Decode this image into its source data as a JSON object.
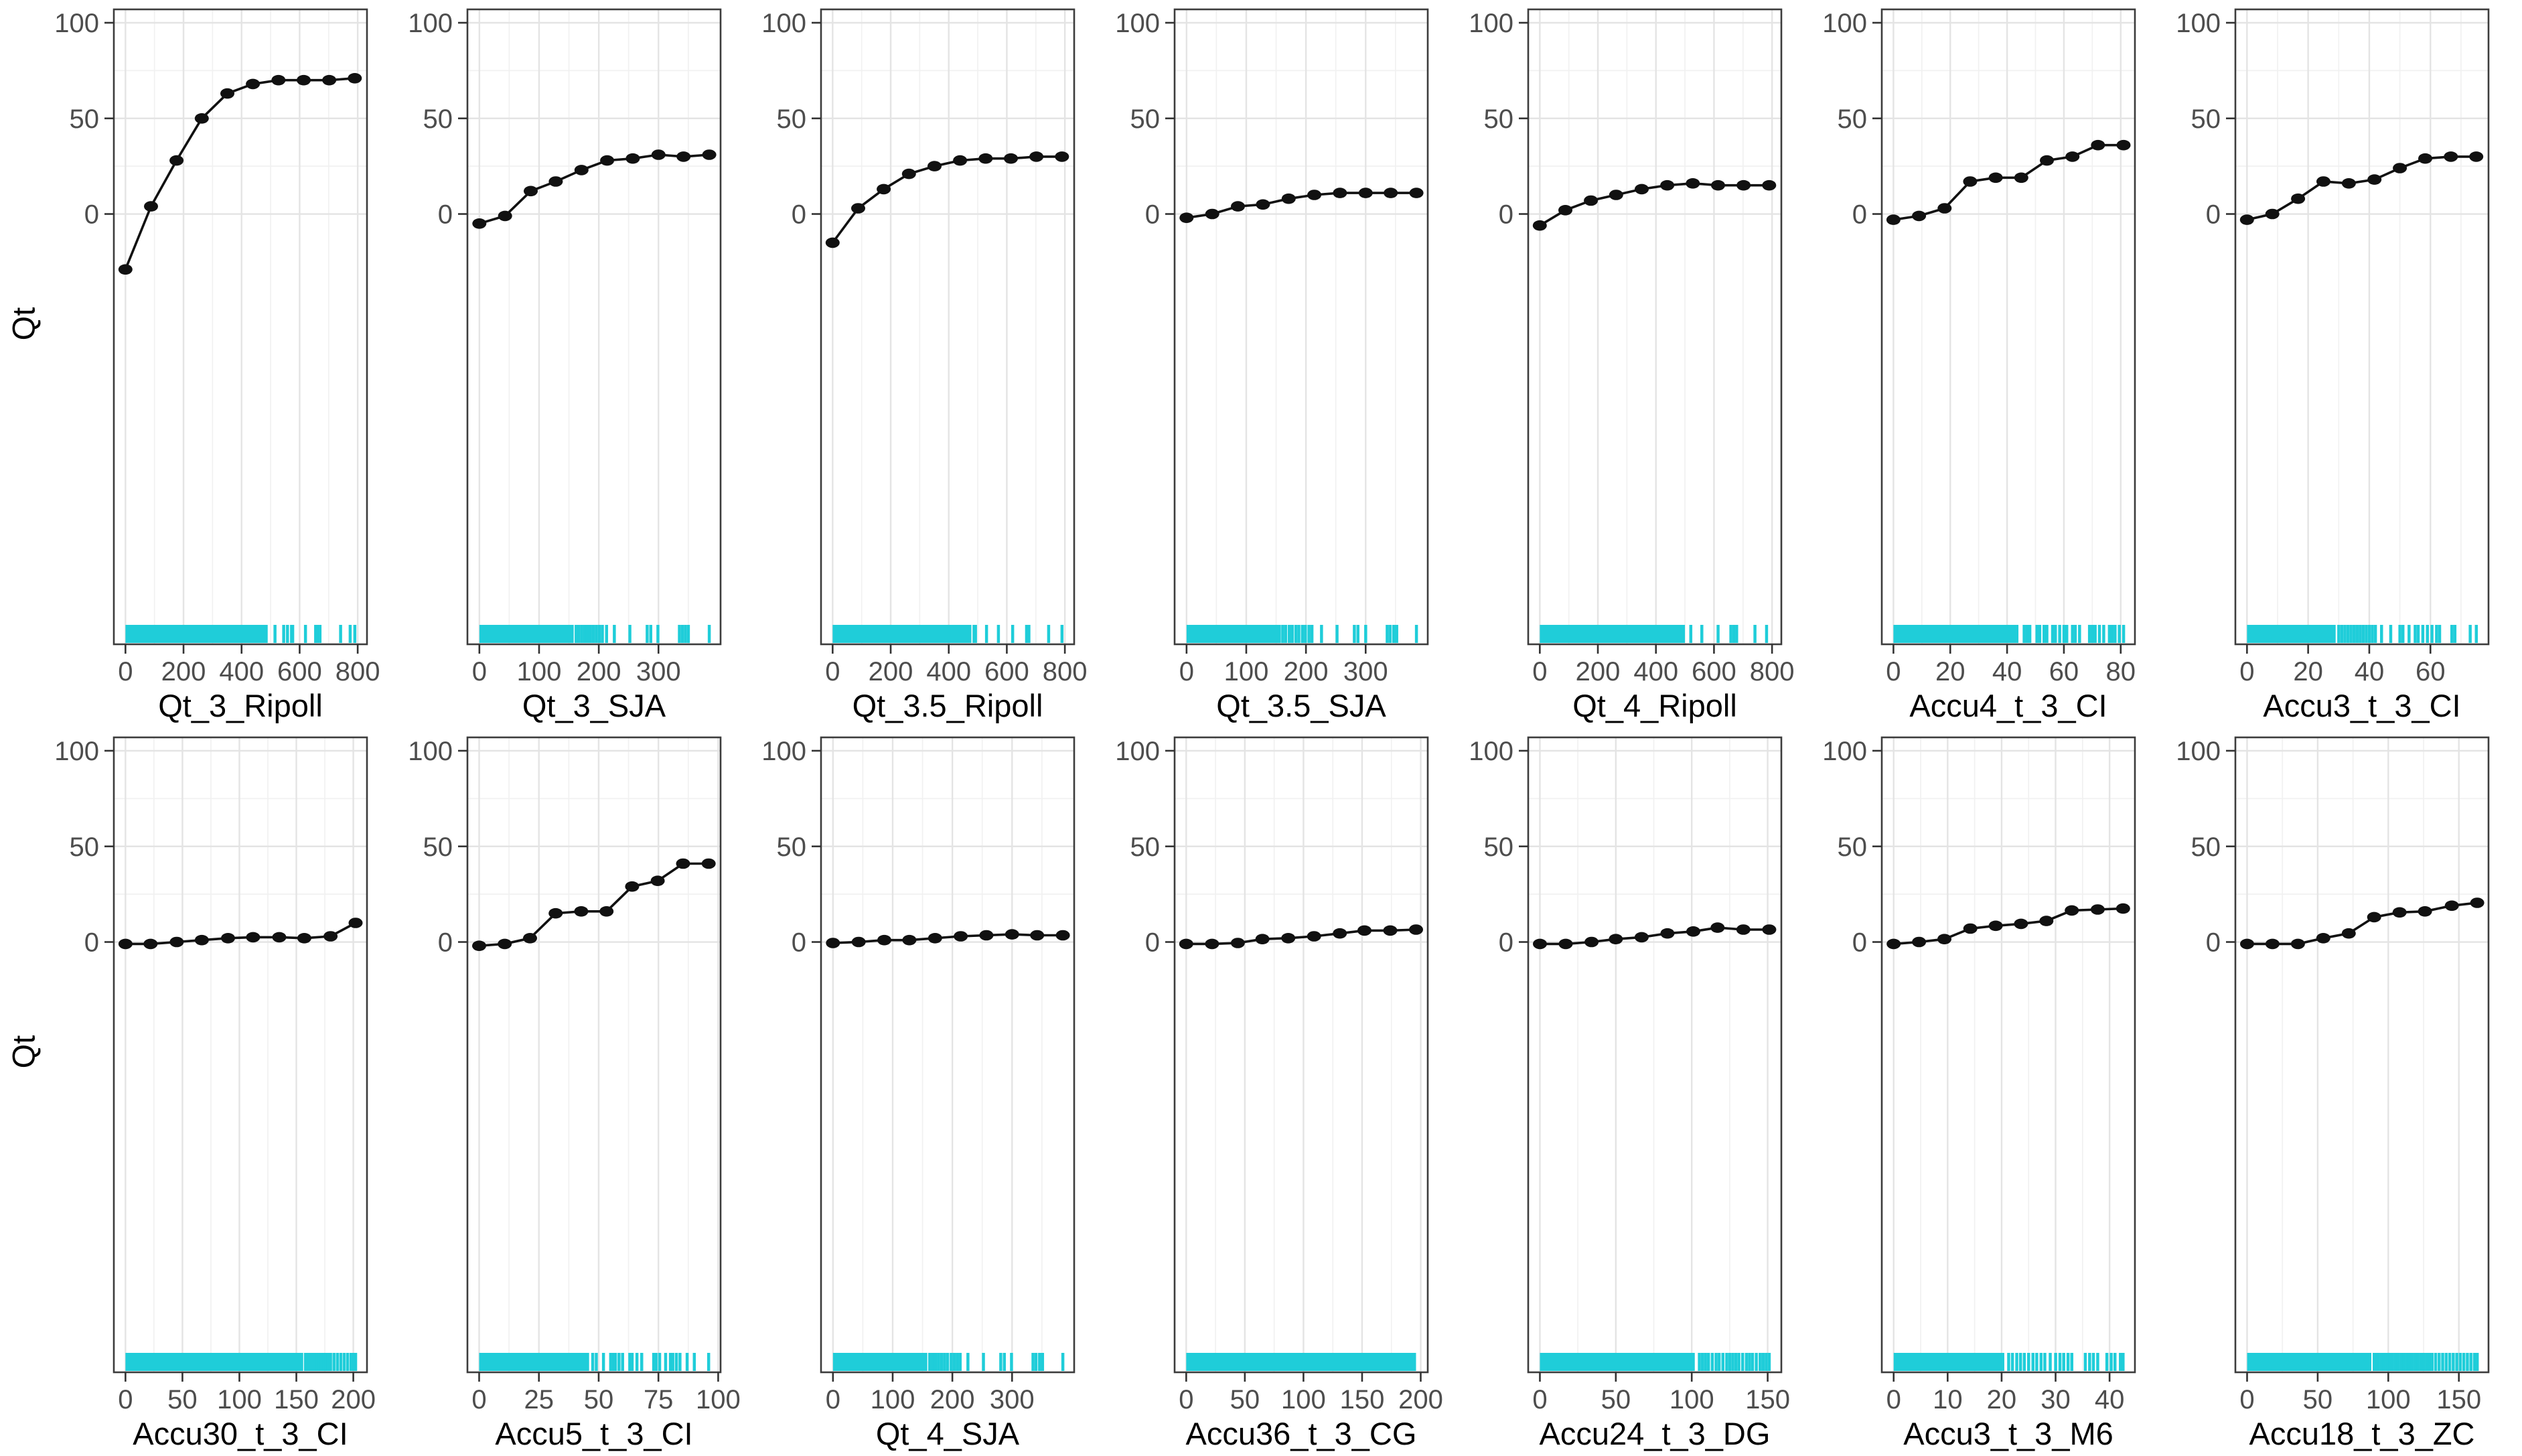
{
  "figure": {
    "ylabel": "Qt",
    "y_ticks": [
      0,
      50,
      100
    ],
    "y_minor_ticks": [
      25,
      75
    ],
    "ylim": [
      -225,
      107
    ],
    "colors": {
      "rug": "#1fcdd9",
      "line": "#111111",
      "point": "#111111",
      "tick_label": "#4d4d4d",
      "axis_title": "#000000",
      "grid_major": "#e4e4e4",
      "grid_minor": "#f1f1f1",
      "panel_border": "#3c3c3c",
      "tick_mark": "#333333",
      "background": "#ffffff"
    },
    "layout": {
      "rows": 2,
      "cols": 7,
      "legend": "none",
      "grid": "on"
    }
  },
  "chart_data": [
    {
      "type": "line",
      "xlabel": "Qt_3_Ripoll",
      "x_ticks": [
        0,
        200,
        400,
        600,
        800
      ],
      "xlim": [
        -40,
        832
      ],
      "x": [
        0,
        88,
        176,
        263,
        351,
        439,
        527,
        614,
        702,
        790
      ],
      "y": [
        -29,
        4,
        28,
        50,
        63,
        68,
        70,
        70,
        70,
        71
      ],
      "rug_solid": [
        0,
        490
      ],
      "rug_marks": [
        515,
        545,
        558,
        572,
        576,
        620,
        655,
        664,
        670,
        741,
        774,
        790
      ]
    },
    {
      "type": "line",
      "xlabel": "Qt_3_SJA",
      "x_ticks": [
        0,
        100,
        200,
        300
      ],
      "xlim": [
        -20,
        404
      ],
      "x": [
        0,
        43,
        86,
        128,
        171,
        214,
        257,
        300,
        342,
        385
      ],
      "y": [
        -5,
        -1,
        12,
        17,
        23,
        28,
        29,
        31,
        30,
        31
      ],
      "rug_solid": [
        0,
        158
      ],
      "rug_marks": [
        162,
        166,
        171,
        176,
        181,
        186,
        191,
        196,
        201,
        206,
        213,
        226,
        252,
        281,
        287,
        299,
        335,
        340,
        345,
        350,
        385
      ]
    },
    {
      "type": "line",
      "xlabel": "Qt_3.5_Ripoll",
      "x_ticks": [
        0,
        200,
        400,
        600,
        800
      ],
      "xlim": [
        -40,
        832
      ],
      "x": [
        0,
        88,
        176,
        263,
        351,
        439,
        527,
        614,
        702,
        790
      ],
      "y": [
        -15,
        3,
        13,
        21,
        25,
        28,
        29,
        29,
        30,
        30
      ],
      "rug_solid": [
        0,
        478
      ],
      "rug_marks": [
        487,
        492,
        530,
        571,
        620,
        668,
        676,
        744,
        790
      ]
    },
    {
      "type": "line",
      "xlabel": "Qt_3.5_SJA",
      "x_ticks": [
        0,
        100,
        200,
        300
      ],
      "xlim": [
        -20,
        404
      ],
      "x": [
        0,
        43,
        86,
        128,
        171,
        214,
        257,
        300,
        342,
        385
      ],
      "y": [
        -2,
        0,
        4,
        5,
        8,
        10,
        11,
        11,
        11,
        11
      ],
      "rug_solid": [
        0,
        158
      ],
      "rug_marks": [
        161,
        166,
        172,
        177,
        183,
        188,
        194,
        199,
        205,
        210,
        226,
        252,
        281,
        287,
        300,
        336,
        341,
        347,
        352,
        385
      ]
    },
    {
      "type": "line",
      "xlabel": "Qt_4_Ripoll",
      "x_ticks": [
        0,
        200,
        400,
        600,
        800
      ],
      "xlim": [
        -40,
        832
      ],
      "x": [
        0,
        88,
        176,
        263,
        351,
        439,
        527,
        614,
        702,
        790
      ],
      "y": [
        -6,
        2,
        7,
        10,
        13,
        15,
        16,
        15,
        15,
        15
      ],
      "rug_solid": [
        0,
        500
      ],
      "rug_marks": [
        520,
        558,
        614,
        658,
        668,
        678,
        741,
        781
      ]
    },
    {
      "type": "line",
      "xlabel": "Accu4_t_3_CI",
      "x_ticks": [
        0,
        20,
        40,
        60,
        80
      ],
      "xlim": [
        -4.1,
        85
      ],
      "x": [
        0,
        9,
        18,
        27,
        36,
        45,
        54,
        63,
        72,
        81
      ],
      "y": [
        -3,
        -1,
        3,
        17,
        19,
        19,
        28,
        30,
        36,
        36
      ],
      "rug_solid": [
        0,
        44
      ],
      "rug_marks": [
        46,
        47,
        48,
        50.5,
        51.5,
        53,
        54,
        56,
        57,
        58.5,
        60,
        61,
        63,
        64,
        65.5,
        69,
        70,
        71,
        72.5,
        74,
        76,
        77,
        78,
        79.5,
        81
      ]
    },
    {
      "type": "line",
      "xlabel": "Accu3_t_3_CI",
      "x_ticks": [
        0,
        20,
        40,
        60
      ],
      "xlim": [
        -3.8,
        79
      ],
      "x": [
        0,
        8.3,
        16.7,
        25,
        33.3,
        41.7,
        50,
        58.3,
        66.7,
        75
      ],
      "y": [
        -3,
        0,
        8,
        17,
        16,
        18,
        24,
        29,
        30,
        30
      ],
      "rug_solid": [
        0,
        29
      ],
      "rug_marks": [
        30,
        31,
        32,
        33,
        34,
        35,
        36,
        37,
        38,
        39,
        40,
        41,
        42,
        44,
        47,
        50,
        51,
        53,
        55,
        56,
        57.5,
        59,
        60.5,
        62,
        63,
        67,
        68,
        73,
        75
      ]
    },
    {
      "type": "line",
      "xlabel": "Accu30_t_3_CI",
      "x_ticks": [
        0,
        50,
        100,
        150,
        200
      ],
      "xlim": [
        -10.2,
        212
      ],
      "x": [
        0,
        22,
        45,
        67,
        90,
        112,
        135,
        157,
        180,
        202
      ],
      "y": [
        -1,
        -1,
        0,
        1,
        2,
        2.5,
        2.5,
        2,
        3,
        10
      ],
      "rug_solid": [
        0,
        156
      ],
      "rug_marks": [
        158,
        160,
        162,
        164,
        166,
        168,
        170,
        172,
        174,
        176,
        178,
        180,
        183,
        186,
        189,
        192,
        195,
        198,
        200,
        202
      ]
    },
    {
      "type": "line",
      "xlabel": "Accu5_t_3_CI",
      "x_ticks": [
        0,
        25,
        50,
        75,
        100
      ],
      "xlim": [
        -4.9,
        101
      ],
      "x": [
        0,
        10.7,
        21.3,
        32,
        42.7,
        53.3,
        64,
        74.7,
        85.3,
        96
      ],
      "y": [
        -2,
        -1,
        2,
        15,
        16,
        16,
        29,
        32,
        41,
        41
      ],
      "rug_solid": [
        0,
        46
      ],
      "rug_marks": [
        47.5,
        49,
        52,
        55,
        56,
        57,
        58.5,
        60,
        63,
        64,
        66,
        68,
        73,
        74,
        75.5,
        78,
        80,
        81,
        82.5,
        84,
        87,
        90,
        96
      ]
    },
    {
      "type": "line",
      "xlabel": "Qt_4_SJA",
      "x_ticks": [
        0,
        100,
        200,
        300
      ],
      "xlim": [
        -20,
        404
      ],
      "x": [
        0,
        43,
        86,
        128,
        171,
        214,
        257,
        300,
        342,
        385
      ],
      "y": [
        -0.5,
        0,
        1,
        1,
        2,
        3,
        3.5,
        4,
        3.5,
        3.5
      ],
      "rug_solid": [
        0,
        158
      ],
      "rug_marks": [
        162,
        167,
        172,
        177,
        182,
        187,
        192,
        198,
        203,
        208,
        213,
        226,
        252,
        281,
        287,
        299,
        335,
        340,
        346,
        351,
        385
      ]
    },
    {
      "type": "line",
      "xlabel": "Accu36_t_3_CG",
      "x_ticks": [
        0,
        50,
        100,
        150,
        200
      ],
      "xlim": [
        -9.9,
        206
      ],
      "x": [
        0,
        22,
        44,
        65,
        87,
        109,
        131,
        152,
        174,
        196
      ],
      "y": [
        -1,
        -1,
        -0.5,
        1.5,
        2,
        3,
        4.5,
        6,
        6,
        6.5
      ],
      "rug_solid": [
        0,
        196
      ],
      "rug_marks": []
    },
    {
      "type": "line",
      "xlabel": "Accu24_t_3_DG",
      "x_ticks": [
        0,
        50,
        100,
        150
      ],
      "xlim": [
        -7.7,
        159
      ],
      "x": [
        0,
        17,
        34,
        50,
        67,
        84,
        101,
        117,
        134,
        151
      ],
      "y": [
        -1,
        -1,
        0,
        1.5,
        2.5,
        4.5,
        5.5,
        7.5,
        6.5,
        6.5
      ],
      "rug_solid": [
        0,
        102
      ],
      "rug_marks": [
        105,
        107,
        109,
        111,
        113.5,
        116,
        118,
        120.5,
        123,
        125,
        127,
        129,
        131,
        133.5,
        136,
        138,
        140,
        142.5,
        145,
        147,
        149,
        151
      ]
    },
    {
      "type": "line",
      "xlabel": "Accu3_t_3_M6",
      "x_ticks": [
        0,
        10,
        20,
        30,
        40
      ],
      "xlim": [
        -2.2,
        44.7
      ],
      "x": [
        0,
        4.7,
        9.4,
        14.2,
        18.9,
        23.6,
        28.3,
        33,
        37.8,
        42.5
      ],
      "y": [
        -1,
        0,
        1.5,
        7,
        8.5,
        9.5,
        11,
        16.5,
        17,
        17.5
      ],
      "rug_solid": [
        0,
        20.5
      ],
      "rug_marks": [
        21.3,
        22,
        22.8,
        23.5,
        24.2,
        25,
        25.8,
        26.5,
        27.3,
        28,
        29,
        30,
        30.8,
        31.5,
        32.3,
        33,
        35.5,
        36.3,
        37,
        37.8,
        39.5,
        40.3,
        41,
        42,
        42.5
      ]
    },
    {
      "type": "line",
      "xlabel": "Accu18_t_3_ZC",
      "x_ticks": [
        0,
        50,
        100,
        150
      ],
      "xlim": [
        -8.3,
        171
      ],
      "x": [
        0,
        18,
        36,
        54,
        72,
        90,
        108,
        126,
        145,
        163
      ],
      "y": [
        -1,
        -1,
        -1,
        2,
        4.5,
        13,
        15.5,
        16,
        19,
        20.5
      ],
      "rug_solid": [
        0,
        88
      ],
      "rug_marks": [
        90,
        91.5,
        93,
        95,
        97,
        99,
        101,
        103,
        105,
        107,
        109,
        111,
        113,
        115,
        117,
        119,
        121,
        123,
        125,
        127,
        129,
        131,
        133.5,
        136,
        138.5,
        141,
        143.5,
        146,
        148.5,
        151,
        153.5,
        156,
        158.5,
        161,
        163
      ]
    }
  ]
}
